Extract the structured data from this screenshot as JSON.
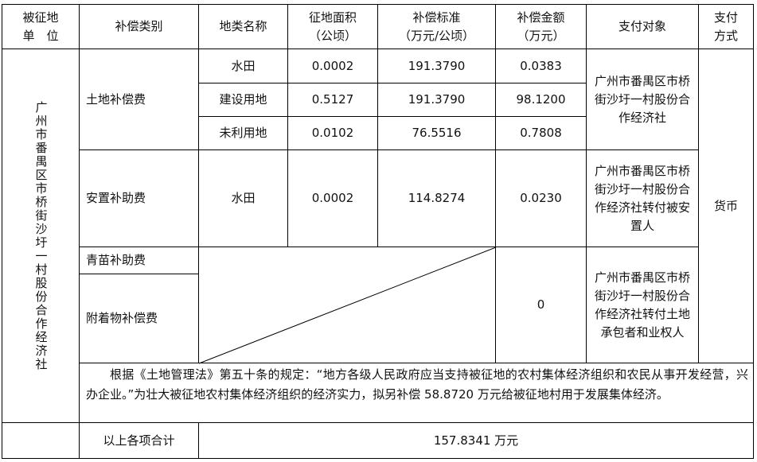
{
  "header": {
    "unit": "被征地\n单　位",
    "category": "补偿类别",
    "land_type": "地类名称",
    "area": "征地面积\n（公顷）",
    "standard": "补偿标准\n（万元/公顷）",
    "amount": "补偿金额\n（万元）",
    "payee": "支付对象",
    "method": "支付\n方式"
  },
  "unit_name": "广州市番禺区市桥街沙圩一村股份合作经济社",
  "land_compensation": {
    "label": "土地补偿费",
    "rows": [
      {
        "type": "水田",
        "area": "0.0002",
        "standard": "191.3790",
        "amount": "0.0383"
      },
      {
        "type": "建设用地",
        "area": "0.5127",
        "standard": "191.3790",
        "amount": "98.1200"
      },
      {
        "type": "未利用地",
        "area": "0.0102",
        "standard": "76.5516",
        "amount": "0.7808"
      }
    ],
    "payee": "广州市番禺区市桥街沙圩一村股份合作经济社"
  },
  "resettlement": {
    "label": "安置补助费",
    "type": "水田",
    "area": "0.0002",
    "standard": "114.8274",
    "amount": "0.0230",
    "payee": "广州市番禺区市桥街沙圩一村股份合作经济社转付被安置人"
  },
  "method_value": "货币",
  "crops": {
    "label": "青苗补助费"
  },
  "attachments": {
    "label": "附着物补偿费",
    "amount": "0",
    "payee": "广州市番禺区市桥街沙圩一村股份合作经济社转付土地承包者和业权人"
  },
  "note": "根据《土地管理法》第五十条的规定：“地方各级人民政府应当支持被征地的农村集体经济组织和农民从事开发经营，兴办企业。”为壮大被征地农村集体经济组织的经济实力，拟另补偿 58.8720 万元给被征地村用于发展集体经济。",
  "total": {
    "label": "以上各项合计",
    "value": "157.8341 万元"
  }
}
